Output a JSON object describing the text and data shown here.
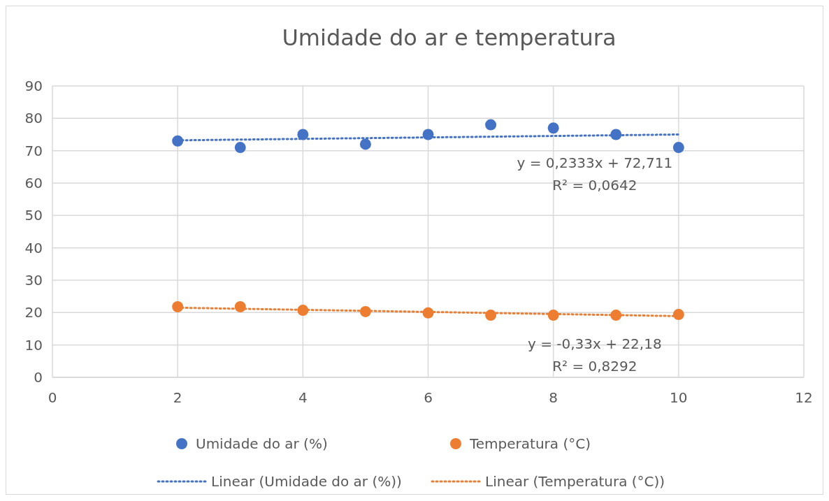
{
  "chart_data": {
    "type": "scatter",
    "title": "Umidade do ar e temperatura",
    "xlim": [
      0,
      12
    ],
    "xticks": [
      0,
      2,
      4,
      6,
      8,
      10,
      12
    ],
    "ylim": [
      0,
      90
    ],
    "yticks": [
      0,
      10,
      20,
      30,
      40,
      50,
      60,
      70,
      80,
      90
    ],
    "grid": true,
    "legend": "bottom",
    "line_style": "dotted",
    "series": [
      {
        "name": "Umidade do ar (%)",
        "marker": "circle",
        "color": "#4472c4",
        "x": [
          2,
          3,
          4,
          5,
          6,
          7,
          8,
          9,
          10
        ],
        "values": [
          73,
          71,
          75,
          72,
          75,
          78,
          77,
          75,
          71
        ]
      },
      {
        "name": "Temperatura (°C)",
        "marker": "circle",
        "color": "#ed7d31",
        "x": [
          2,
          3,
          4,
          5,
          6,
          7,
          8,
          9,
          10
        ],
        "values": [
          21.8,
          21.8,
          20.7,
          20.3,
          19.9,
          19.2,
          19.2,
          19.2,
          19.4
        ]
      },
      {
        "name": "Linear (Umidade do ar (%))",
        "type": "line",
        "color": "#4472c4",
        "x": [
          2,
          10
        ],
        "values": [
          73.2,
          75.0
        ],
        "marker": "none"
      },
      {
        "name": "Linear (Temperatura (°C))",
        "type": "line",
        "color": "#ed7d31",
        "x": [
          2,
          10
        ],
        "values": [
          21.5,
          18.9
        ],
        "marker": "none"
      }
    ],
    "annotations": [
      "y = 0,2333x + 72,711",
      "R² = 0,0642",
      "y = -0,33x + 22,18",
      "R² = 0,8292"
    ]
  }
}
